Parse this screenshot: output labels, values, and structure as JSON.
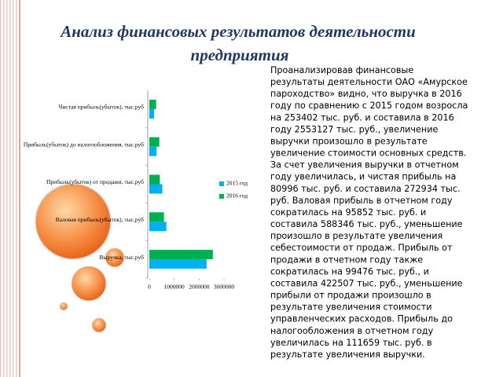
{
  "title_lines": [
    "Анализ финансовых результатов деятельности",
    "предприятия"
  ],
  "text_lines": [
    "Проанализировав финансовые",
    "результаты деятельности ОАО «Амурское",
    "пароходство» видно, что выручка в 2016",
    "году по сравнению с 2015 годом возросла",
    "на 253402 тыс. руб. и составила в 2016",
    "году 2553127 тыс. руб., увеличение",
    "выручки произошло в результате",
    "увеличение стоимости основных средств.",
    "За счет увеличения выручки в отчетном",
    "году увеличилась, и чистая прибыль на",
    "80996 тыс. руб. и составила 272934 тыс.",
    "руб. Валовая прибыль в отчетном году",
    "сократилась на 95852 тыс. руб. и",
    "составила 588346 тыс. руб., уменьшение",
    "произошло в результате увеличения",
    "себестоимости от продаж. Прибыль от",
    "продажи в отчетном году также",
    "сократилась на 99476 тыс. руб., и",
    "составила 422507 тыс. руб., уменьшение",
    "прибыли от продажи произошло в",
    "результате увеличения стоимости",
    "управленческих расходов. Прибыль до",
    "налогообложения в отчетном году",
    "увеличилась на 111659 тыс. руб. в",
    "результате увеличения выручки."
  ],
  "chart_data": {
    "type": "hbar",
    "categories": [
      "Выручка, тыс.руб",
      "Валовая прибыль(убыток), тыс.руб",
      "Прибыль(убыток) от продажи, тыс.руб",
      "Прибыль(убыток) до налогообложения, тыс.руб",
      "Чистая прибыль(убыток), тыс.руб"
    ],
    "series": [
      {
        "name": "2015 год",
        "color": "#00b0f0",
        "values": [
          2299725,
          684198,
          521983,
          288341,
          191938
        ]
      },
      {
        "name": "2016 год",
        "color": "#00b050",
        "values": [
          2553127,
          588346,
          422507,
          400000,
          272934
        ]
      }
    ],
    "xlim": [
      0,
      3000000
    ],
    "xticks": [
      0,
      1000000,
      2000000,
      3000000
    ],
    "legend": "right"
  }
}
